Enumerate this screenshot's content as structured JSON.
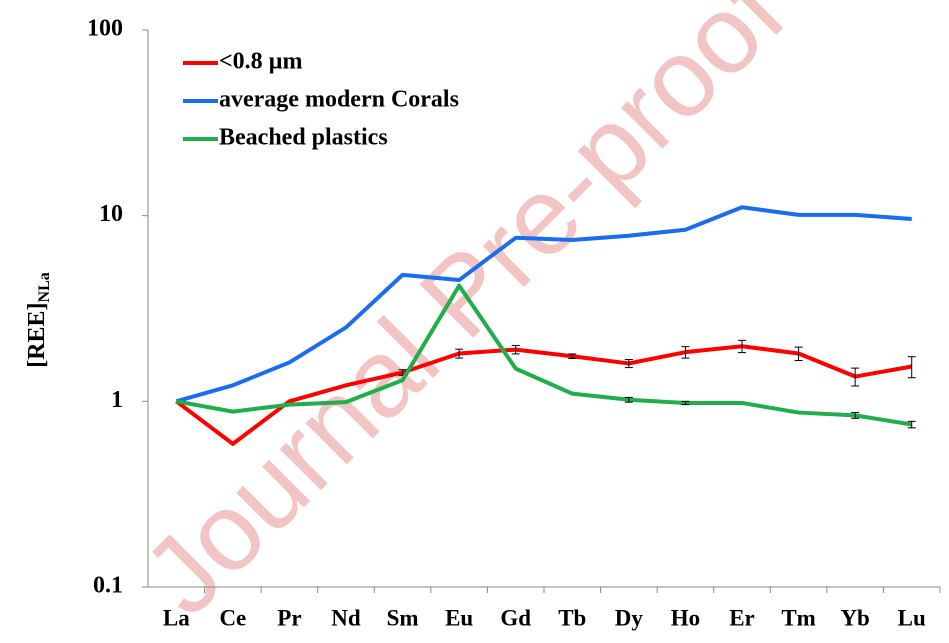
{
  "chart_data": {
    "type": "line",
    "ylabel": "[REE]",
    "ylabel_sub": "NLa",
    "watermark": "Journal Pre-proof",
    "categories": [
      "La",
      "Ce",
      "Pr",
      "Nd",
      "Sm",
      "Eu",
      "Gd",
      "Tb",
      "Dy",
      "Ho",
      "Er",
      "Tm",
      "Yb",
      "Lu"
    ],
    "log_y": true,
    "ylim": [
      0.1,
      100
    ],
    "yticks": [
      0.1,
      1,
      10,
      100
    ],
    "legend": "upper left",
    "series": [
      {
        "name": "<0.8 µm",
        "color": "#ff0000",
        "values": [
          1,
          0.59,
          1.0,
          1.22,
          1.43,
          1.81,
          1.9,
          1.75,
          1.6,
          1.84,
          1.98,
          1.81,
          1.36,
          1.54
        ],
        "errors": [
          null,
          null,
          null,
          null,
          0.05,
          0.1,
          0.1,
          0.05,
          0.08,
          0.13,
          0.15,
          0.15,
          0.15,
          0.2
        ]
      },
      {
        "name": "average modern Corals",
        "color": "#1a6cf0",
        "values": [
          1,
          1.22,
          1.62,
          2.5,
          4.8,
          4.5,
          7.6,
          7.4,
          7.8,
          8.4,
          11.1,
          10.1,
          10.1,
          9.6
        ]
      },
      {
        "name": "Beached plastics",
        "color": "#1fae4a",
        "values": [
          1,
          0.88,
          0.96,
          0.99,
          1.3,
          4.2,
          1.5,
          1.1,
          1.02,
          0.98,
          0.98,
          0.87,
          0.84,
          0.75
        ],
        "errors": [
          null,
          null,
          null,
          null,
          null,
          null,
          null,
          null,
          0.03,
          0.02,
          null,
          null,
          0.03,
          0.03
        ]
      }
    ]
  }
}
